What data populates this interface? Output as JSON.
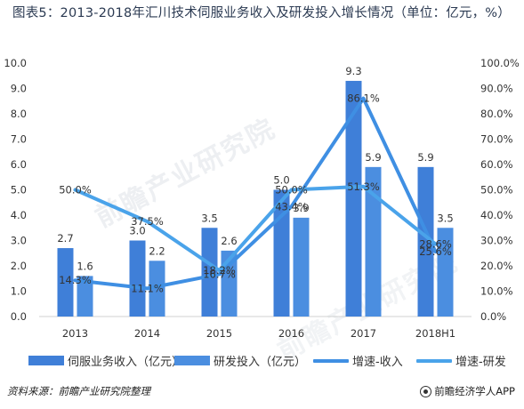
{
  "title": "图表5：2013-2018年汇川技术伺服业务收入及研发投入增长情况（单位：亿元，%）",
  "watermark": "前瞻产业研究院",
  "source": "资料来源：前瞻产业研究院整理",
  "brand": "前瞻经济学人APP",
  "colors": {
    "bar_revenue": "#3f7fd8",
    "bar_rd": "#4b8ee0",
    "line_revenue": "#3f8fe3",
    "line_rd": "#4aa3ea"
  },
  "chart_data": {
    "type": "bar",
    "categories": [
      "2013",
      "2014",
      "2015",
      "2016",
      "2017",
      "2018H1"
    ],
    "series": [
      {
        "name": "伺服业务收入（亿元）",
        "kind": "bar",
        "axis": "left",
        "values": [
          2.7,
          3.0,
          3.5,
          5.0,
          9.3,
          5.9
        ],
        "labels": [
          "2.7",
          "3.0",
          "3.5",
          "5.0",
          "9.3",
          "5.9"
        ]
      },
      {
        "name": "研发投入（亿元）",
        "kind": "bar",
        "axis": "left",
        "values": [
          1.6,
          2.2,
          2.6,
          3.9,
          5.9,
          3.5
        ],
        "labels": [
          "1.6",
          "2.2",
          "2.6",
          "3.9",
          "5.9",
          "3.5"
        ]
      },
      {
        "name": "增速-收入",
        "kind": "line",
        "axis": "right",
        "values": [
          14.3,
          11.1,
          16.7,
          43.4,
          86.1,
          25.6
        ],
        "labels": [
          "14.3%",
          "11.1%",
          "16.7%",
          "43.4%",
          "86.1%",
          "25.6%"
        ]
      },
      {
        "name": "增速-研发",
        "kind": "line",
        "axis": "right",
        "values": [
          50.0,
          37.5,
          18.2,
          50.0,
          51.3,
          28.6
        ],
        "labels": [
          "50.0%",
          "37.5%",
          "18.2%",
          "50.0%",
          "51.3%",
          "28.6%"
        ]
      }
    ],
    "y_left": {
      "ylim": [
        0,
        10
      ],
      "ticks": [
        "0.0",
        "1.0",
        "2.0",
        "3.0",
        "4.0",
        "5.0",
        "6.0",
        "7.0",
        "8.0",
        "9.0",
        "10.0"
      ]
    },
    "y_right": {
      "ylim": [
        0,
        100
      ],
      "ticks": [
        "0.0%",
        "10.0%",
        "20.0%",
        "30.0%",
        "40.0%",
        "50.0%",
        "60.0%",
        "70.0%",
        "80.0%",
        "90.0%",
        "100.0%"
      ]
    },
    "grid": false,
    "legend_position": "bottom"
  }
}
